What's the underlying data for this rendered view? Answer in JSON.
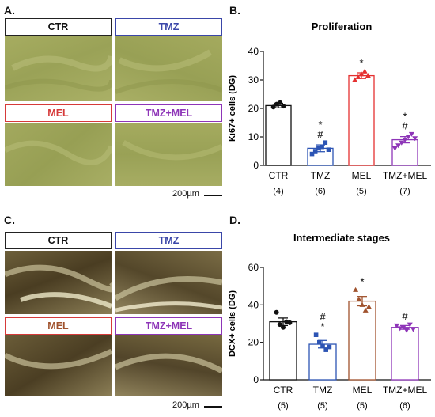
{
  "panels": {
    "a": {
      "letter": "A.",
      "labels": {
        "ctr": "CTR",
        "tmz": "TMZ",
        "mel": "MEL",
        "tmzmel": "TMZ+MEL"
      },
      "scale": "200µm"
    },
    "c": {
      "letter": "C.",
      "labels": {
        "ctr": "CTR",
        "tmz": "TMZ",
        "mel": "MEL",
        "tmzmel": "TMZ+MEL"
      },
      "scale": "200µm"
    },
    "b": {
      "letter": "B."
    },
    "d": {
      "letter": "D."
    }
  },
  "colors": {
    "ctr": "#111111",
    "tmz": "#2c54b4",
    "mel": "#e53030",
    "tmzmel": "#8e35b8",
    "mel_d": "#a0522d",
    "tmz_label": "#3a46a8",
    "mel_label": "#d63a3a",
    "tmzmel_label": "#8e35b8"
  },
  "chart_data": [
    {
      "type": "bar",
      "title": "Proliferation",
      "ylabel": "Ki67+ cells (DG)",
      "ylim": [
        0,
        40
      ],
      "yticks": [
        0,
        10,
        20,
        30,
        40
      ],
      "categories": [
        "CTR",
        "TMZ",
        "MEL",
        "TMZ+MEL"
      ],
      "n_labels": [
        "(4)",
        "(6)",
        "(5)",
        "(7)"
      ],
      "values": [
        21,
        6,
        31.5,
        9
      ],
      "errors": [
        0.8,
        1.2,
        1.0,
        1.1
      ],
      "annotations": [
        [],
        [
          "*",
          "#"
        ],
        [
          "*"
        ],
        [
          "*",
          "#"
        ]
      ],
      "points": [
        [
          20.5,
          21.5,
          22,
          20.8
        ],
        [
          4,
          5,
          6,
          6.5,
          8,
          5.5
        ],
        [
          30,
          31,
          32,
          33,
          31.5
        ],
        [
          6,
          7,
          8,
          9,
          10,
          11,
          9.5
        ]
      ]
    },
    {
      "type": "bar",
      "title": "Intermediate stages",
      "ylabel": "DCX+ cells (DG)",
      "ylim": [
        0,
        60
      ],
      "yticks": [
        0,
        20,
        40,
        60
      ],
      "categories": [
        "CTR",
        "TMZ",
        "MEL",
        "TMZ+MEL"
      ],
      "n_labels": [
        "(5)",
        "(5)",
        "(5)",
        "(6)"
      ],
      "values": [
        31,
        19,
        42,
        28
      ],
      "errors": [
        2.0,
        2.0,
        2.5,
        1.0
      ],
      "annotations": [
        [],
        [
          "#",
          "*"
        ],
        [
          "*"
        ],
        [
          "#"
        ]
      ],
      "points": [
        [
          36,
          29.5,
          28,
          31,
          30.5
        ],
        [
          24,
          20,
          18,
          16,
          17.5
        ],
        [
          48,
          43,
          40,
          37,
          39
        ],
        [
          29,
          27.5,
          28,
          26.5,
          29.5,
          27
        ]
      ]
    }
  ]
}
